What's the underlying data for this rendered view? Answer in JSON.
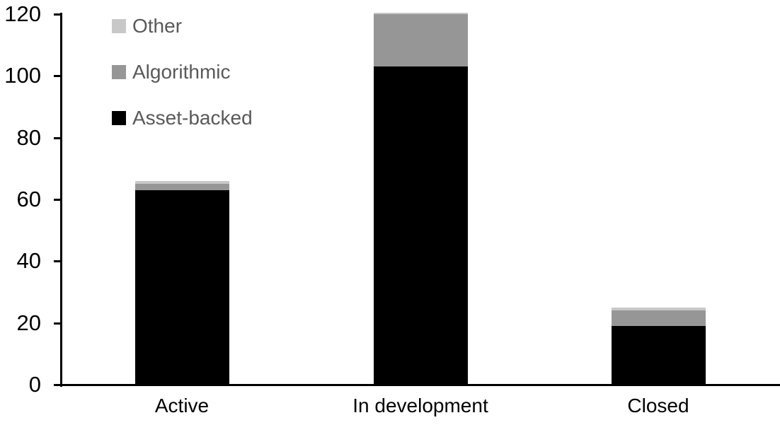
{
  "chart_data": {
    "type": "bar",
    "stacked": true,
    "title": "",
    "categories": [
      "Active",
      "In development",
      "Closed"
    ],
    "series": [
      {
        "name": "Asset-backed",
        "color": "#000000",
        "values": [
          63,
          103,
          19
        ]
      },
      {
        "name": "Algorithmic",
        "color": "#969696",
        "values": [
          2,
          17,
          5
        ]
      },
      {
        "name": "Other",
        "color": "#C8C8C8",
        "values": [
          1,
          0.5,
          1
        ]
      }
    ],
    "totals": [
      66,
      120.5,
      25
    ],
    "y_axis": {
      "min": 0,
      "max": 120,
      "tick_interval": 20,
      "ticks": [
        0,
        20,
        40,
        60,
        80,
        100,
        120
      ],
      "label_color": "#000000"
    },
    "x_axis": {
      "labels": [
        "Active",
        "In development",
        "Closed"
      ],
      "label_color": "#000000"
    },
    "legend": {
      "position": "top-left",
      "order": [
        "Other",
        "Algorithmic",
        "Asset-backed"
      ],
      "text_color": "#595959"
    },
    "grid": false,
    "axis_color": "#000000",
    "background": "#FFFFFF"
  }
}
